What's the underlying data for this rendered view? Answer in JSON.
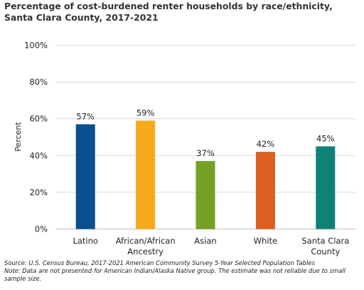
{
  "title": "Percentage of cost-burdened renter households by race/ethnicity, Santa Clara County, 2017-2021",
  "source": "Source: U.S. Census Bureau, 2017-2021 American Community Survey 5-Year Selected Population Tables",
  "note": "Note: Data are not presented for American Indian/Alaska Native group. The estimate was not reliable due to small sample size.",
  "chart_data": {
    "type": "bar",
    "title": "Percentage of cost-burdened renter households by race/ethnicity, Santa Clara County, 2017-2021",
    "xlabel": "",
    "ylabel": "Percent",
    "ylim": [
      0,
      100
    ],
    "yticks": [
      "0%",
      "20%",
      "40%",
      "60%",
      "80%",
      "100%"
    ],
    "ytick_values": [
      0,
      20,
      40,
      60,
      80,
      100
    ],
    "grid": true,
    "legend": "none",
    "categories": [
      [
        "Latino"
      ],
      [
        "African/African",
        "Ancestry"
      ],
      [
        "Asian"
      ],
      [
        "White"
      ],
      [
        "Santa Clara",
        "County"
      ]
    ],
    "values": [
      57,
      59,
      37,
      42,
      45
    ],
    "value_labels": [
      "57%",
      "59%",
      "37%",
      "42%",
      "45%"
    ],
    "colors": [
      "#0b4f91",
      "#f7a81b",
      "#72a125",
      "#dd5e20",
      "#0e8279"
    ]
  }
}
